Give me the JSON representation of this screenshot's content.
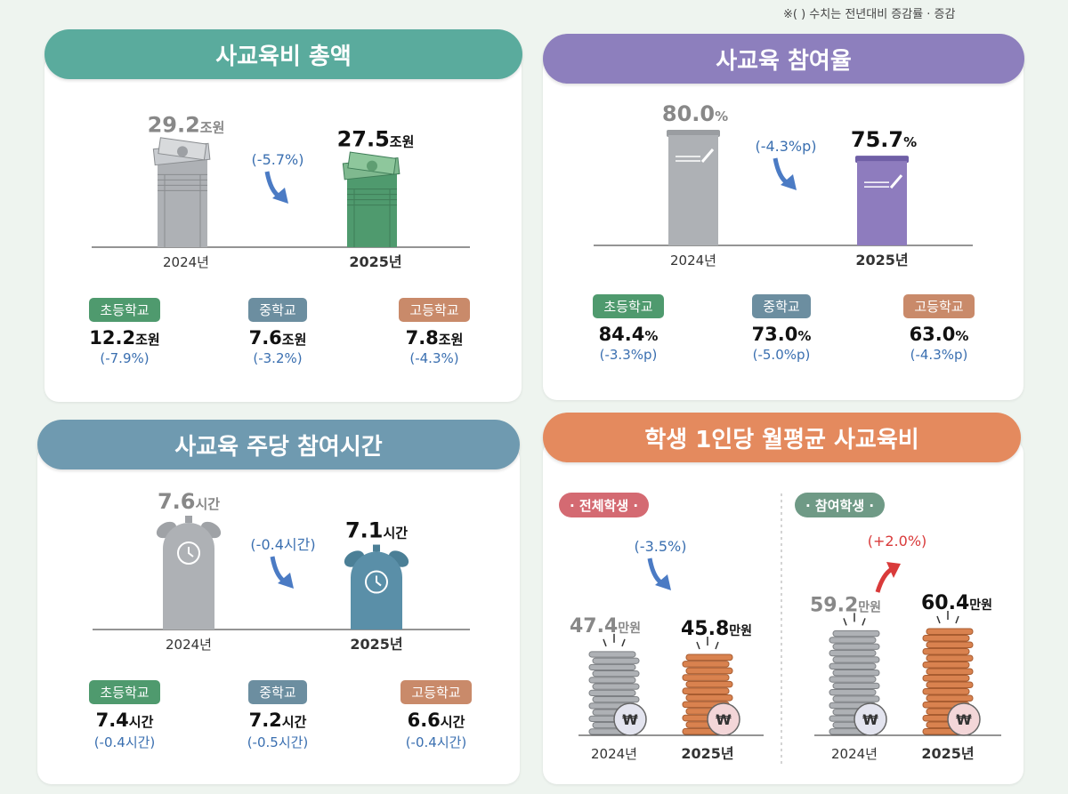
{
  "note": "※(     ) 수치는 전년대비 증감률 · 증감",
  "colors": {
    "teal": "#5aab9d",
    "purple": "#8d7fbd",
    "blue": "#6f9ab0",
    "orange": "#e48a5e",
    "gray": "#aeb1b5",
    "green": "#4f9a6e",
    "barPurple": "#8e7cbe",
    "barBlue": "#5a8fa8",
    "coinOrange": "#d9824f",
    "change": "#3a6fb0",
    "up": "#d93a3a",
    "tagElem": "#4f9a6e",
    "tagMid": "#6c8ea0",
    "tagHigh": "#c98a6a"
  },
  "icons": [
    "money-stack-icon",
    "book-pencil-icon",
    "alarm-clock-icon",
    "coin-stack-icon",
    "won-icon",
    "down-arrow-icon",
    "up-arrow-icon"
  ],
  "panels": {
    "total": {
      "title": "사교육비 총액",
      "chart_data": {
        "type": "bar",
        "categories": [
          "2024년",
          "2025년"
        ],
        "values": [
          29.2,
          27.5
        ],
        "unit": "조원",
        "change": "(-5.7%)"
      },
      "sub": [
        {
          "label": "초등학교",
          "value": "12.2",
          "unit": "조원",
          "change": "(-7.9%)"
        },
        {
          "label": "중학교",
          "value": "7.6",
          "unit": "조원",
          "change": "(-3.2%)"
        },
        {
          "label": "고등학교",
          "value": "7.8",
          "unit": "조원",
          "change": "(-4.3%)"
        }
      ]
    },
    "participation": {
      "title": "사교육 참여율",
      "chart_data": {
        "type": "bar",
        "categories": [
          "2024년",
          "2025년"
        ],
        "values": [
          80.0,
          75.7
        ],
        "unit": "%",
        "change": "(-4.3%p)"
      },
      "sub": [
        {
          "label": "초등학교",
          "value": "84.4",
          "unit": "%",
          "change": "(-3.3%p)"
        },
        {
          "label": "중학교",
          "value": "73.0",
          "unit": "%",
          "change": "(-5.0%p)"
        },
        {
          "label": "고등학교",
          "value": "63.0",
          "unit": "%",
          "change": "(-4.3%p)"
        }
      ]
    },
    "hours": {
      "title": "사교육 주당 참여시간",
      "chart_data": {
        "type": "bar",
        "categories": [
          "2024년",
          "2025년"
        ],
        "values": [
          7.6,
          7.1
        ],
        "unit": "시간",
        "change": "(-0.4시간)"
      },
      "sub": [
        {
          "label": "초등학교",
          "value": "7.4",
          "unit": "시간",
          "change": "(-0.4시간)"
        },
        {
          "label": "중학교",
          "value": "7.2",
          "unit": "시간",
          "change": "(-0.5시간)"
        },
        {
          "label": "고등학교",
          "value": "6.6",
          "unit": "시간",
          "change": "(-0.4시간)"
        }
      ]
    },
    "monthly": {
      "title": "학생 1인당 월평균 사교육비",
      "groups": [
        {
          "label": "· 전체학생 ·",
          "chart_data": {
            "type": "bar",
            "categories": [
              "2024년",
              "2025년"
            ],
            "values": [
              47.4,
              45.8
            ],
            "unit": "만원",
            "change": "(-3.5%)",
            "direction": "down"
          }
        },
        {
          "label": "· 참여학생 ·",
          "chart_data": {
            "type": "bar",
            "categories": [
              "2024년",
              "2025년"
            ],
            "values": [
              59.2,
              60.4
            ],
            "unit": "만원",
            "change": "(+2.0%)",
            "direction": "up"
          }
        }
      ]
    }
  }
}
